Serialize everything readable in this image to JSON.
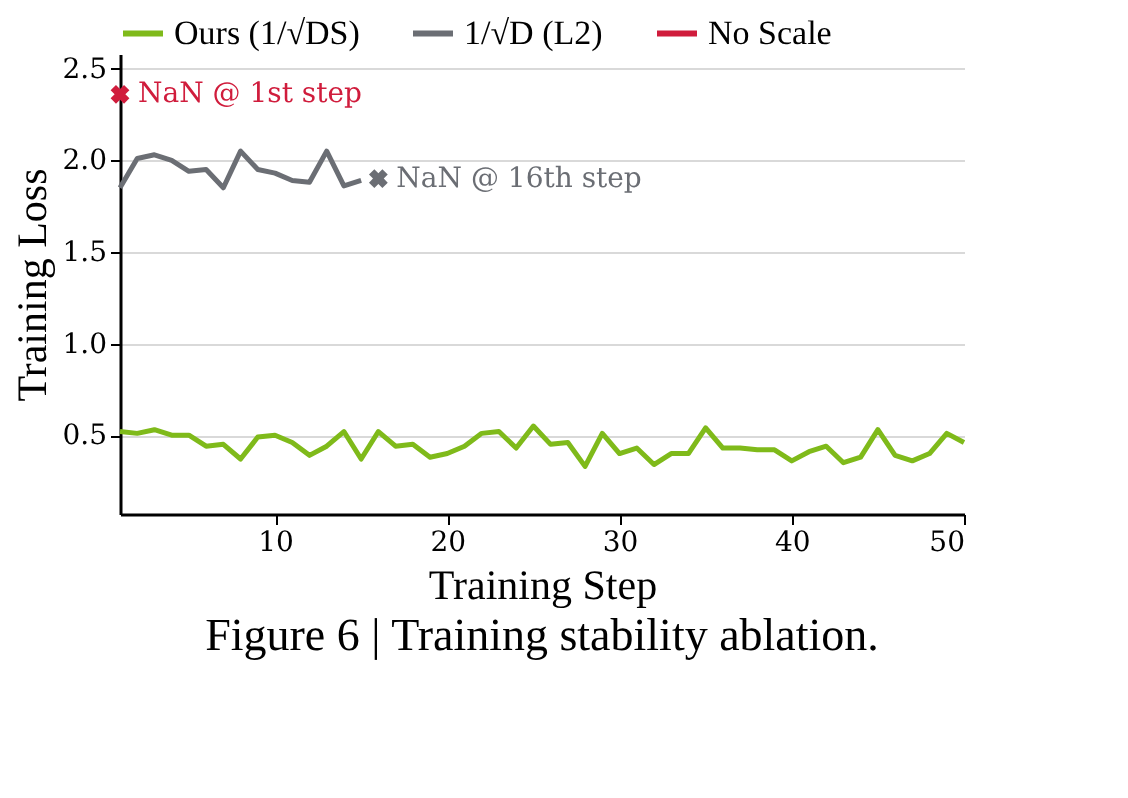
{
  "chart_data": {
    "type": "line",
    "title": "Figure 6 | Training stability ablation.",
    "xlabel": "Training Step",
    "ylabel": "Training Loss",
    "x": [
      1,
      2,
      3,
      4,
      5,
      6,
      7,
      8,
      9,
      10,
      11,
      12,
      13,
      14,
      15,
      16,
      17,
      18,
      19,
      20,
      21,
      22,
      23,
      24,
      25,
      26,
      27,
      28,
      29,
      30,
      31,
      32,
      33,
      34,
      35,
      36,
      37,
      38,
      39,
      40,
      41,
      42,
      43,
      44,
      45,
      46,
      47,
      48,
      49,
      50
    ],
    "series": [
      {
        "name": "Ours (1/√DS)",
        "color": "#7fba1a",
        "values": [
          0.52,
          0.51,
          0.53,
          0.5,
          0.5,
          0.44,
          0.45,
          0.37,
          0.49,
          0.5,
          0.46,
          0.39,
          0.44,
          0.52,
          0.37,
          0.52,
          0.44,
          0.45,
          0.38,
          0.4,
          0.44,
          0.51,
          0.52,
          0.43,
          0.55,
          0.45,
          0.46,
          0.33,
          0.51,
          0.4,
          0.43,
          0.34,
          0.4,
          0.4,
          0.54,
          0.43,
          0.43,
          0.42,
          0.42,
          0.36,
          0.41,
          0.44,
          0.35,
          0.38,
          0.53,
          0.39,
          0.36,
          0.4,
          0.51,
          0.46
        ]
      },
      {
        "name": "1/√D (L2)",
        "color": "#6b6e74",
        "x": [
          1,
          2,
          3,
          4,
          5,
          6,
          7,
          8,
          9,
          10,
          11,
          12,
          13,
          14,
          15
        ],
        "values": [
          1.85,
          2.01,
          2.03,
          2.0,
          1.94,
          1.95,
          1.85,
          2.05,
          1.95,
          1.93,
          1.89,
          1.88,
          2.05,
          1.86,
          1.89
        ]
      },
      {
        "color": "#6b6e74",
        "type": "scatter",
        "marker": "cross",
        "x": [
          16
        ],
        "values": [
          1.9
        ]
      },
      {
        "name": "No Scale",
        "color": "#d01c3c",
        "type": "scatter",
        "marker": "cross",
        "x": [
          1
        ],
        "values": [
          2.36
        ]
      }
    ],
    "annotations": [
      {
        "text": "NaN @ 1st step",
        "x": 1,
        "y": 2.36
      },
      {
        "text": "NaN @ 16th step",
        "x": 16,
        "y": 1.9
      }
    ],
    "xlim": [
      1,
      50
    ],
    "xticks": [
      10,
      20,
      30,
      40,
      50
    ],
    "ylim": [
      0.07,
      2.58
    ],
    "yticks": [
      0.5,
      {
        "value": 1,
        "label": "1.0"
      },
      1.5,
      {
        "value": 2,
        "label": "2.0"
      },
      2.5
    ],
    "grid": "y",
    "legend": "top",
    "line_style": "solid"
  }
}
